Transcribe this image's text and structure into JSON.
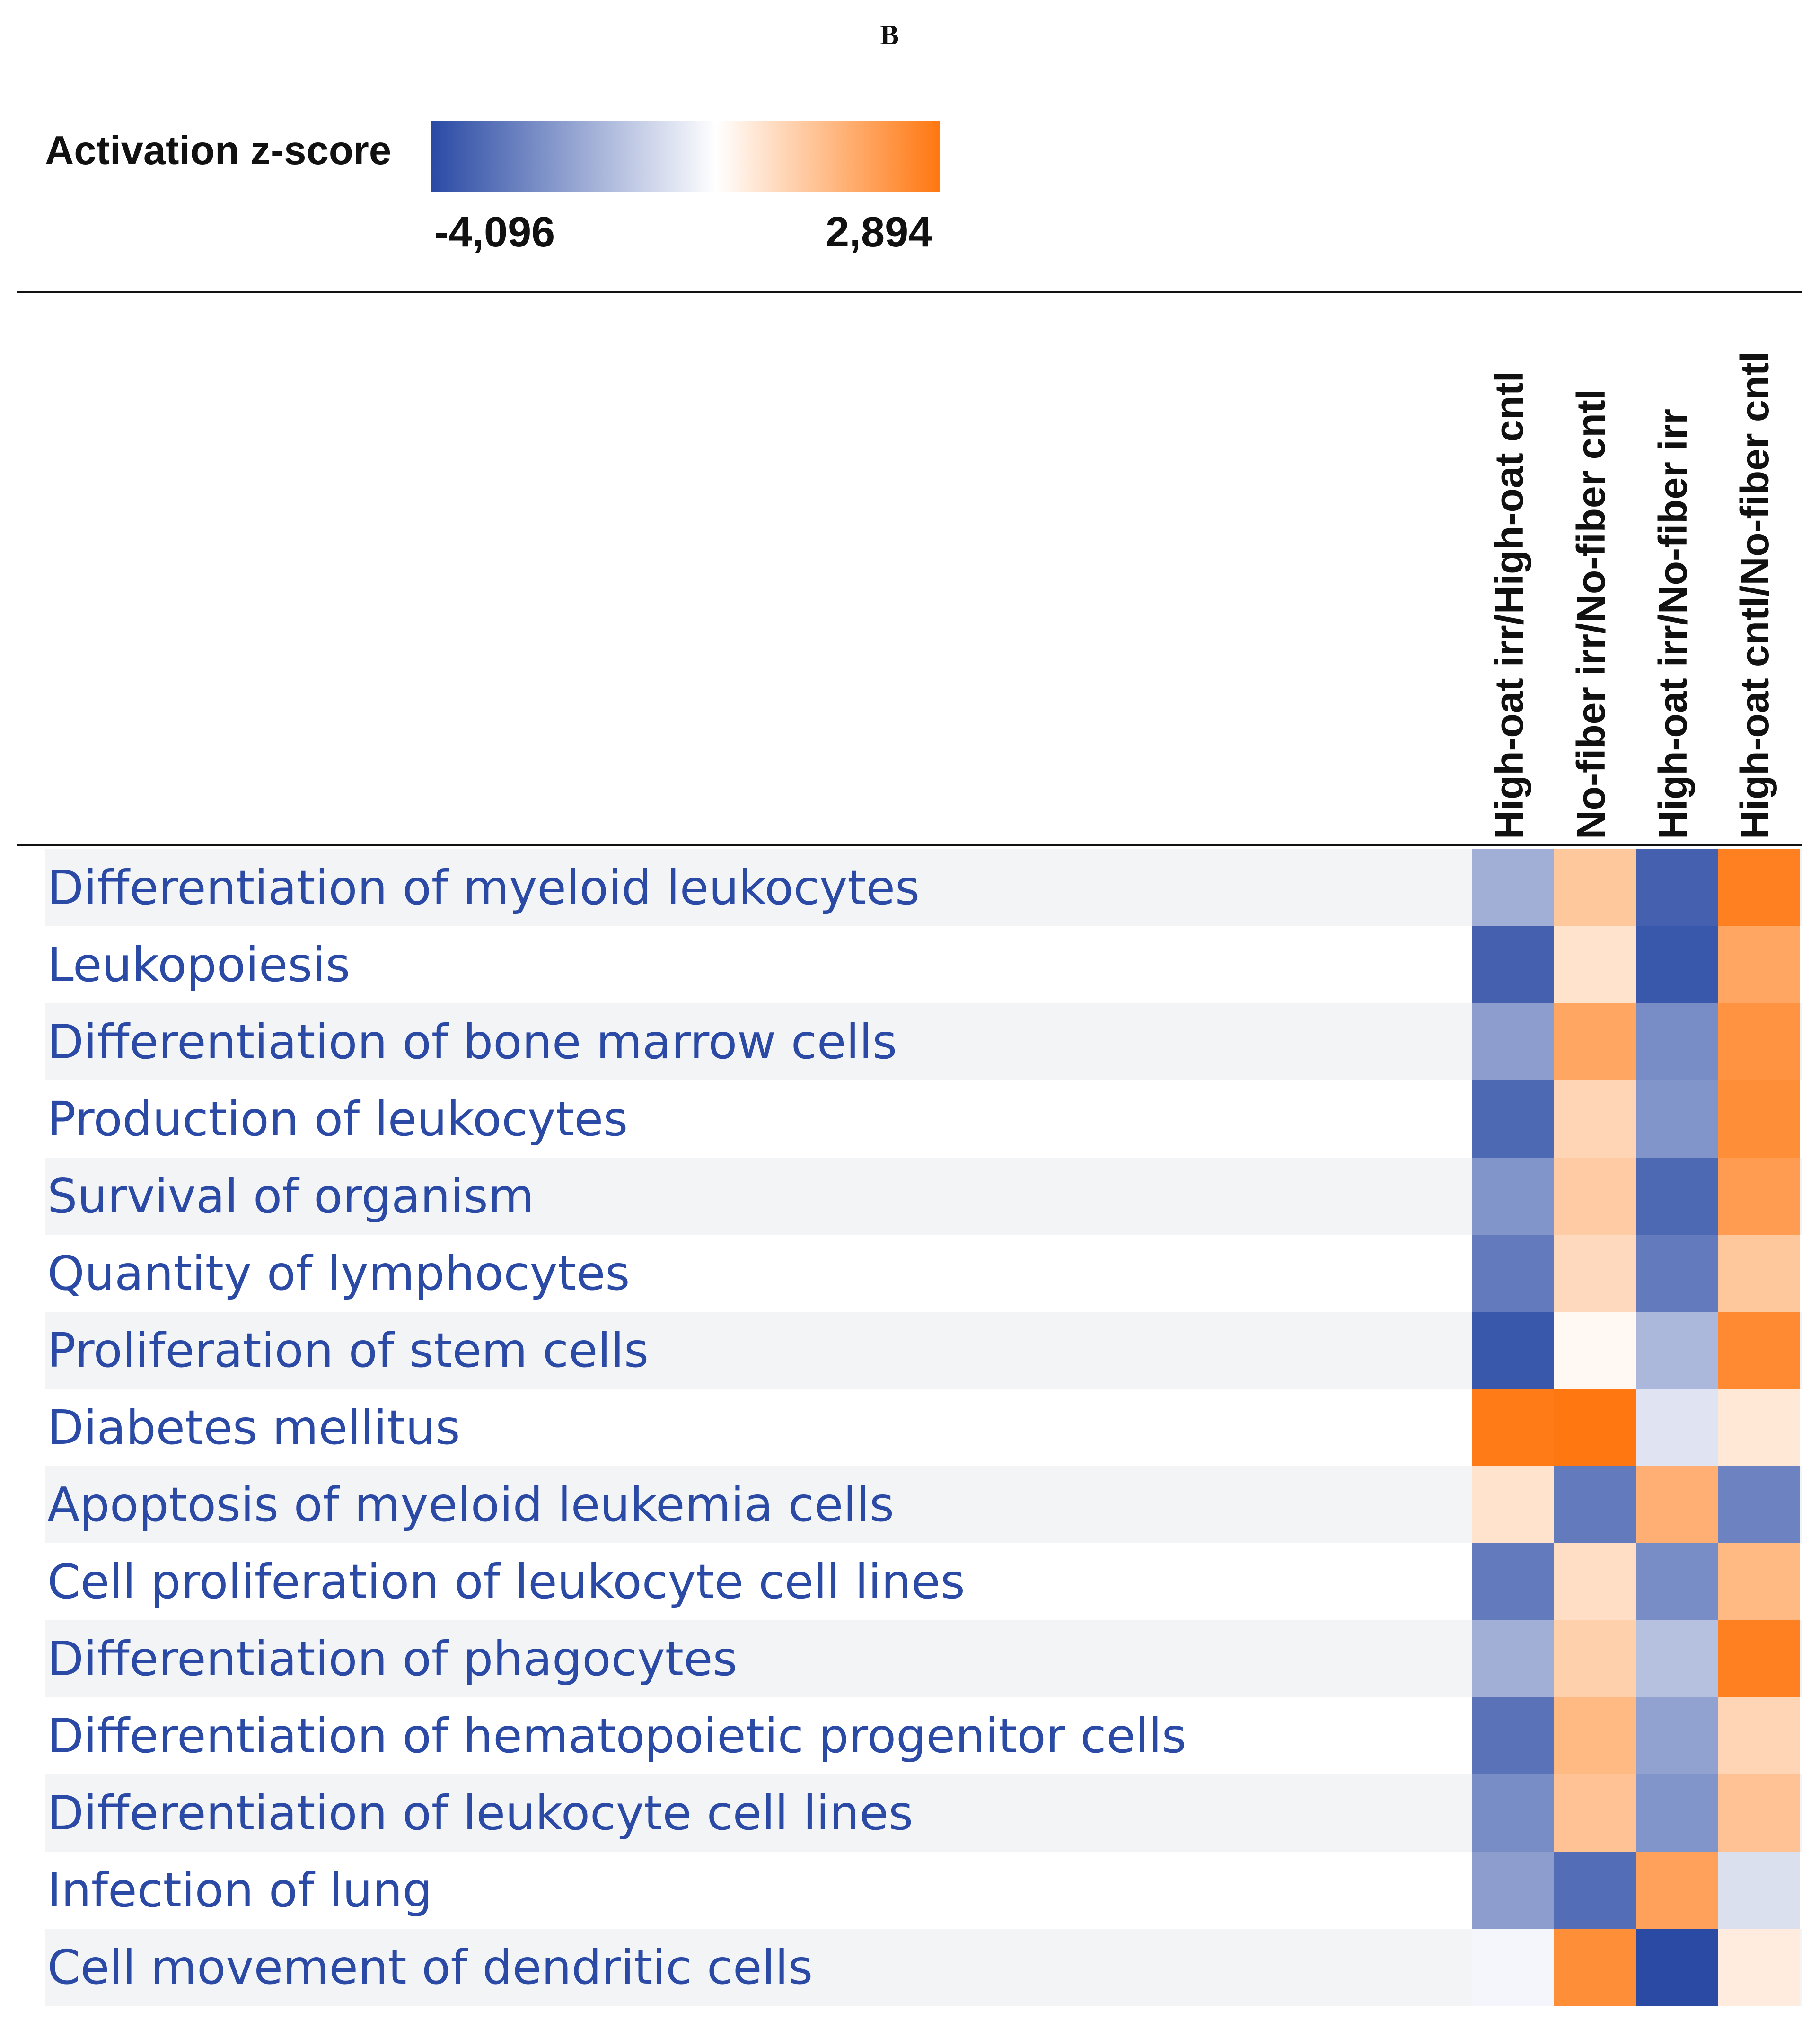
{
  "panel_label": "B",
  "chart_data": {
    "type": "heatmap",
    "title": "",
    "colorbar": {
      "label": "Activation z-score",
      "min": -4.096,
      "max": 2.894,
      "min_label": "-4,096",
      "max_label": "2,894",
      "low_color": "#2a4aa4",
      "mid_color": "#ffffff",
      "high_color": "#ff7710"
    },
    "columns": [
      "High-oat irr/High-oat cntl",
      "No-fiber irr/No-fiber cntl",
      "High-oat irr/No-fiber irr",
      "High-oat cntl/No-fiber cntl"
    ],
    "rows": [
      "Differentiation of myeloid leukocytes",
      "Leukopoiesis",
      "Differentiation of bone marrow cells",
      "Production of leukocytes",
      "Survival of organism",
      "Quantity of lymphocytes",
      "Proliferation of stem cells",
      "Diabetes mellitus",
      "Apoptosis of myeloid leukemia cells",
      "Cell proliferation of leukocyte cell lines",
      "Differentiation of phagocytes",
      "Differentiation of hematopoietic progenitor cells",
      "Differentiation of leukocyte cell lines",
      "Infection of lung",
      "Cell movement of dendritic cells"
    ],
    "values": [
      [
        -1.8,
        1.2,
        -3.6,
        2.7
      ],
      [
        -3.6,
        0.6,
        -3.8,
        1.9
      ],
      [
        -2.2,
        1.9,
        -2.6,
        2.3
      ],
      [
        -3.4,
        0.9,
        -2.4,
        2.4
      ],
      [
        -2.4,
        1.1,
        -3.4,
        2.1
      ],
      [
        -3.0,
        0.8,
        -3.0,
        1.2
      ],
      [
        -3.8,
        0.15,
        -1.6,
        2.5
      ],
      [
        2.8,
        2.9,
        -0.6,
        0.5
      ],
      [
        0.6,
        -3.0,
        1.7,
        -2.8
      ],
      [
        -3.0,
        0.7,
        -2.6,
        1.5
      ],
      [
        -1.8,
        1.0,
        -1.4,
        2.7
      ],
      [
        -3.2,
        1.5,
        -2.1,
        0.9
      ],
      [
        -2.6,
        1.3,
        -2.4,
        1.3
      ],
      [
        -2.2,
        -3.3,
        2.0,
        -0.7
      ],
      [
        -0.2,
        2.4,
        -4.096,
        0.4
      ]
    ]
  }
}
